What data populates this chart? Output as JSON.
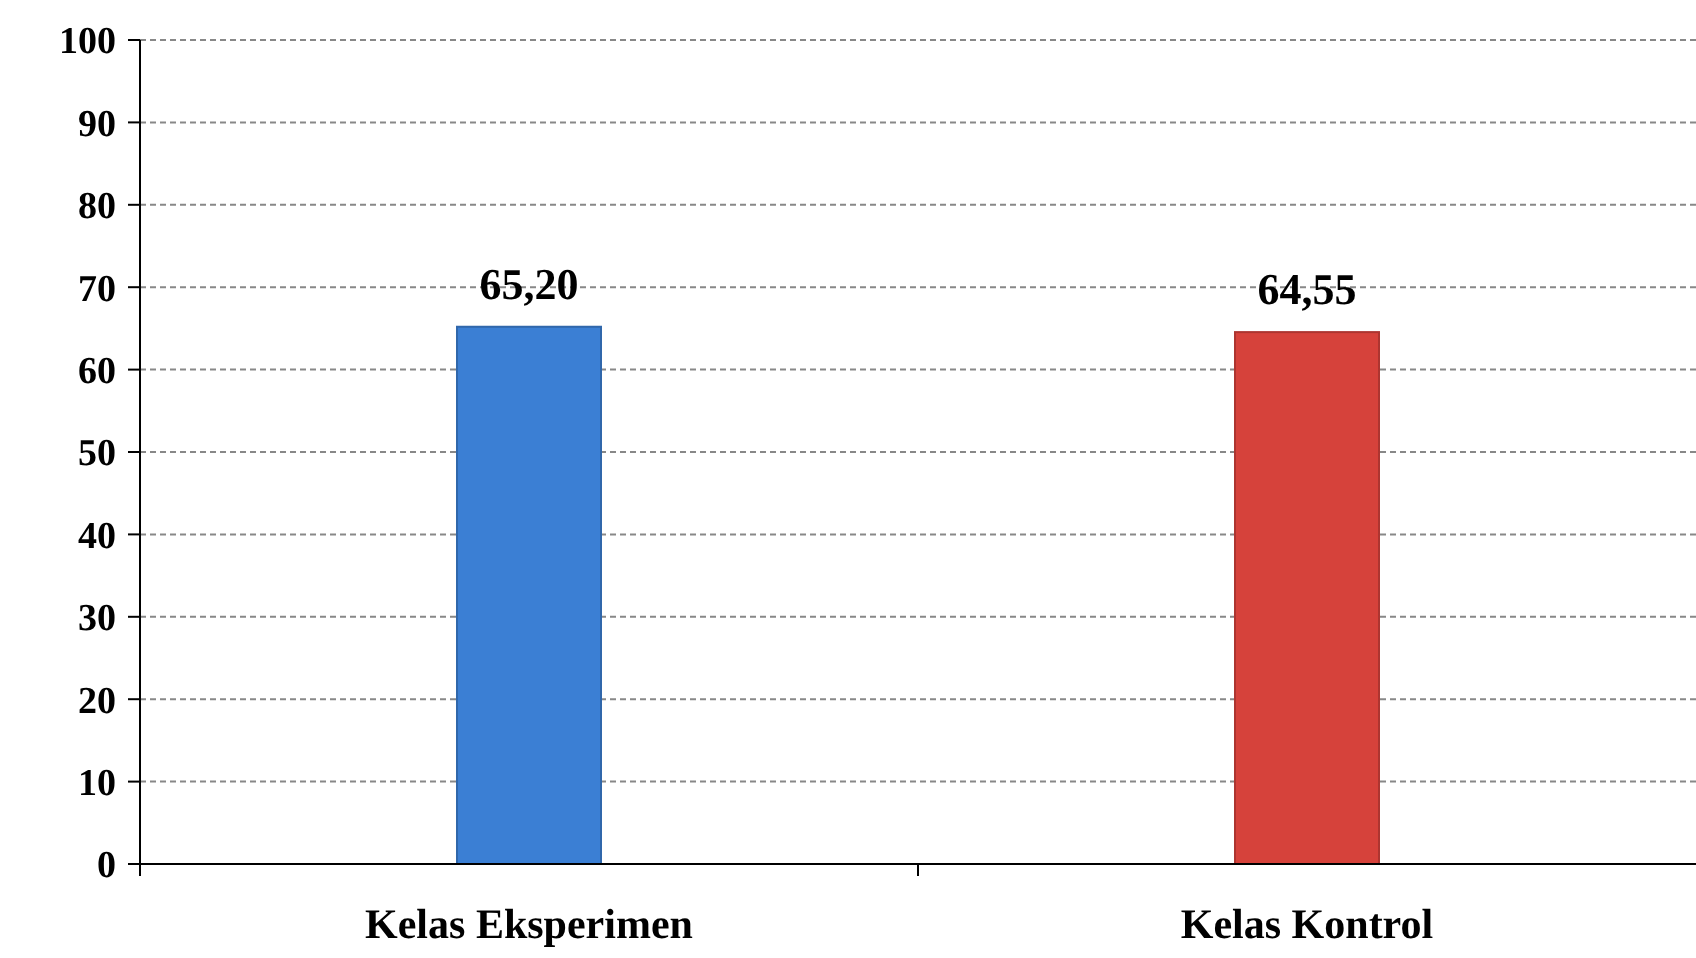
{
  "chart_data": {
    "type": "bar",
    "categories": [
      "Kelas Eksperimen",
      "Kelas Kontrol"
    ],
    "values": [
      65.2,
      64.55
    ],
    "colors": [
      "#3b7fd4",
      "#d6423b"
    ],
    "value_labels": [
      "65,20",
      "64,55"
    ],
    "ylim": [
      0,
      100
    ],
    "yticks": [
      0,
      10,
      20,
      30,
      40,
      50,
      60,
      70,
      80,
      90,
      100
    ],
    "grid": "y"
  }
}
